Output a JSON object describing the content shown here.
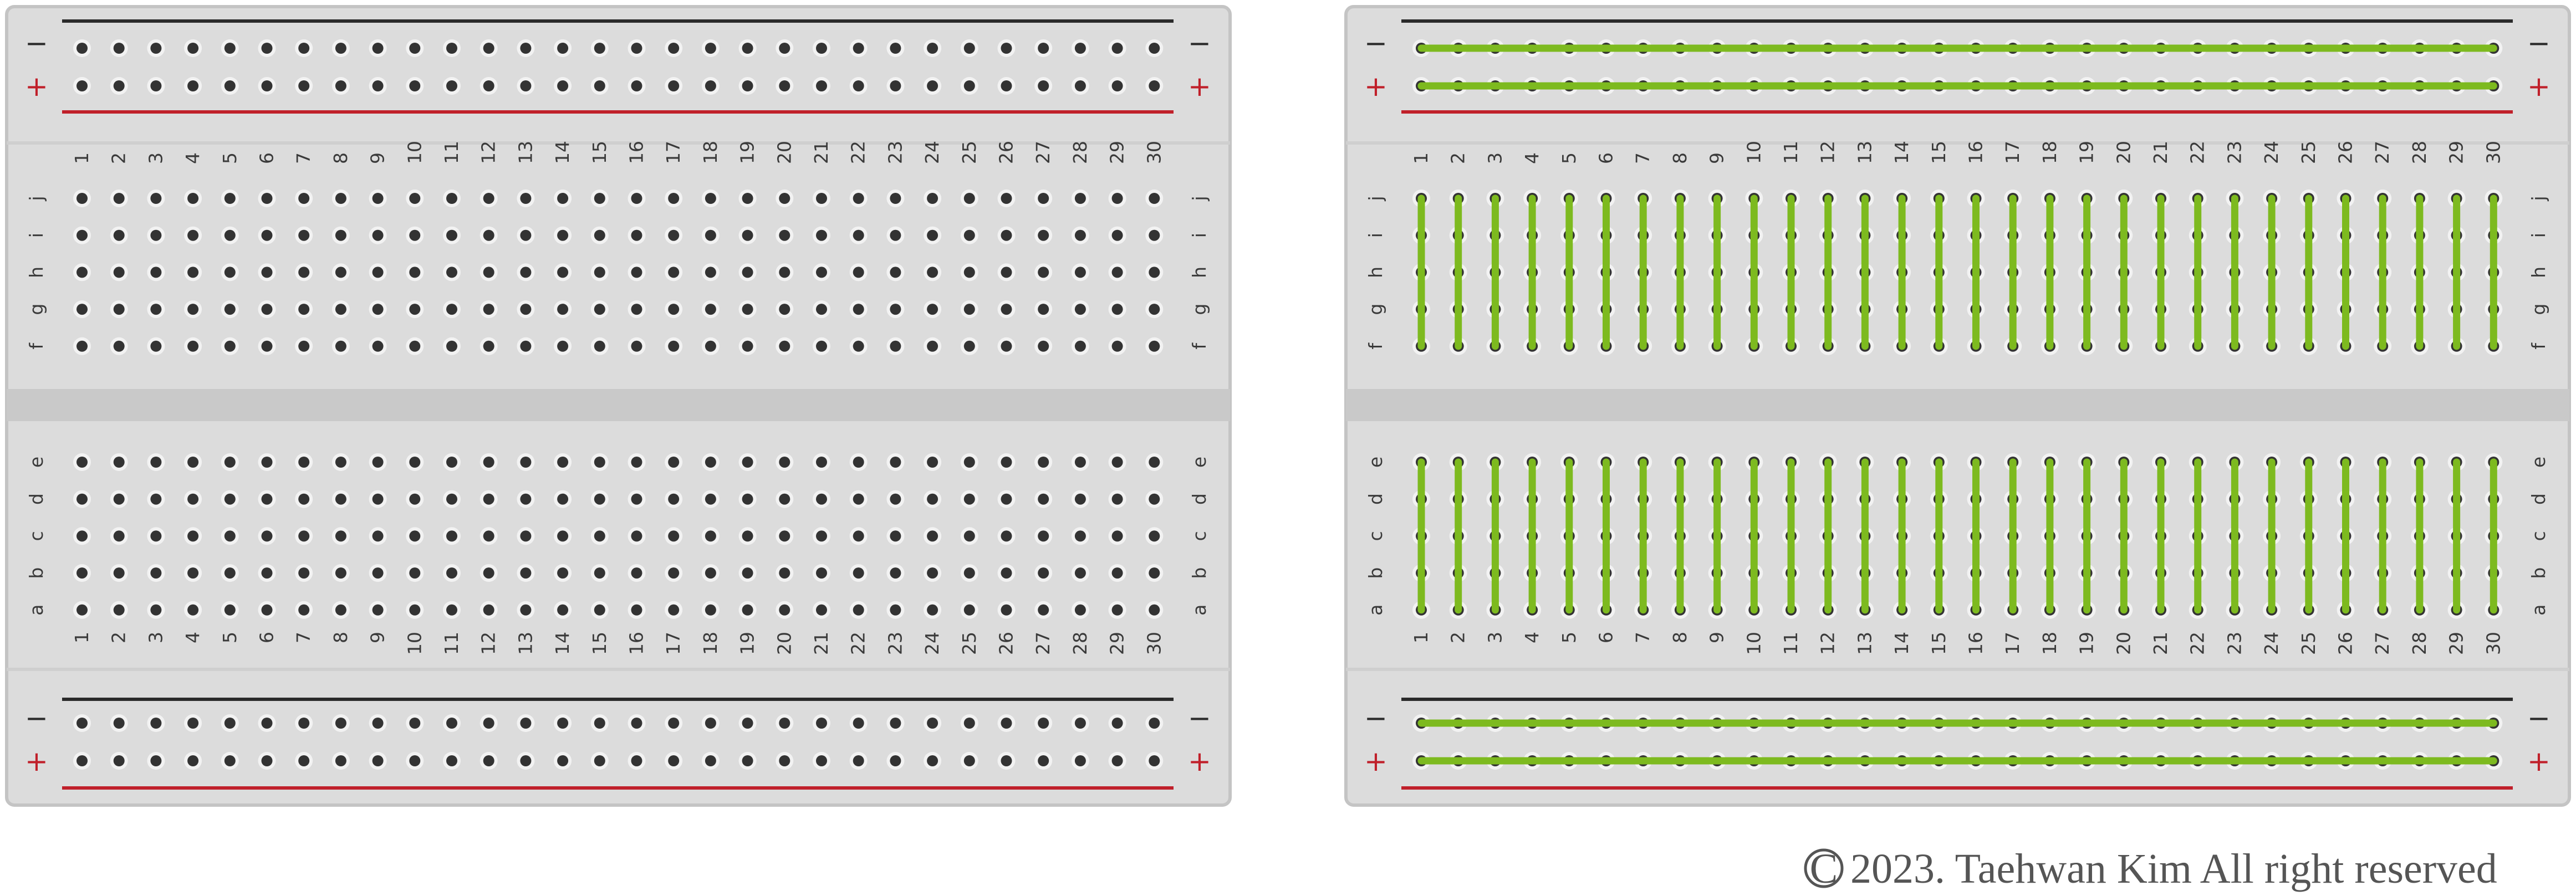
{
  "colors": {
    "board": "#dcdcdc",
    "board_edge": "#c4c4c4",
    "panel_divider": "#cfcfcf",
    "center_channel": "#c9c9c9",
    "hole_ring": "#f2f2f2",
    "hole": "#333333",
    "negative_rail_line": "#2a2a2a",
    "positive_rail_line": "#c0202a",
    "connection_highlight": "#7dba1f",
    "copyright_text": "#555555"
  },
  "breadboards": [
    {
      "id": "plain-breadboard",
      "show_connections": false,
      "negative_sign": "−",
      "positive_sign": "+",
      "upper_row_labels": [
        "j",
        "i",
        "h",
        "g",
        "f"
      ],
      "lower_row_labels": [
        "e",
        "d",
        "c",
        "b",
        "a"
      ],
      "column_labels": [
        "1",
        "2",
        "3",
        "4",
        "5",
        "6",
        "7",
        "8",
        "9",
        "10",
        "11",
        "12",
        "13",
        "14",
        "15",
        "16",
        "17",
        "18",
        "19",
        "20",
        "21",
        "22",
        "23",
        "24",
        "25",
        "26",
        "27",
        "28",
        "29",
        "30"
      ]
    },
    {
      "id": "connected-breadboard",
      "show_connections": true,
      "negative_sign": "−",
      "positive_sign": "+",
      "upper_row_labels": [
        "j",
        "i",
        "h",
        "g",
        "f"
      ],
      "lower_row_labels": [
        "e",
        "d",
        "c",
        "b",
        "a"
      ],
      "column_labels": [
        "1",
        "2",
        "3",
        "4",
        "5",
        "6",
        "7",
        "8",
        "9",
        "10",
        "11",
        "12",
        "13",
        "14",
        "15",
        "16",
        "17",
        "18",
        "19",
        "20",
        "21",
        "22",
        "23",
        "24",
        "25",
        "26",
        "27",
        "28",
        "29",
        "30"
      ]
    }
  ],
  "copyright": {
    "symbol": "C",
    "text": "2023. Taehwan Kim All right reserved"
  }
}
